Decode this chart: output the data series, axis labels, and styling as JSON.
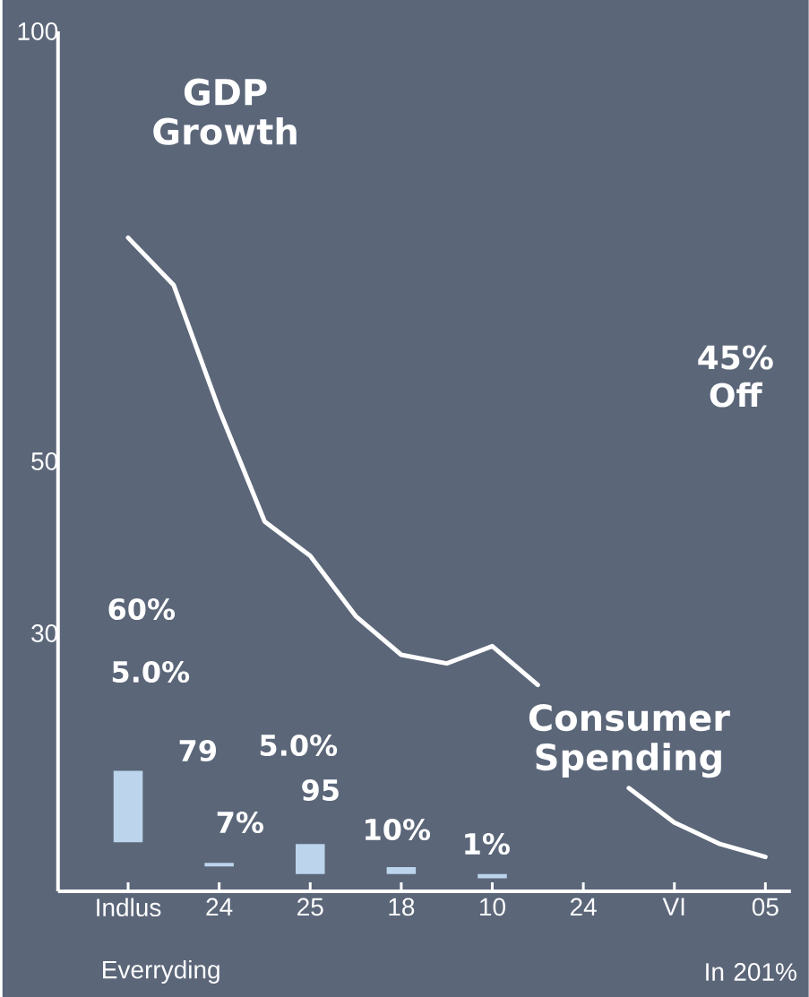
{
  "chart_data": {
    "type": "line",
    "categories": [
      "Indlus",
      null,
      "24",
      null,
      "25",
      null,
      "18",
      null,
      "10",
      null,
      "24",
      null,
      "VI",
      null,
      "05"
    ],
    "ylim": [
      0,
      100
    ],
    "yticks": [
      100,
      50,
      30
    ],
    "grid": false,
    "marker": "none",
    "line_style": "solid",
    "series": [
      {
        "name": "GDP Growth",
        "color": "#ffffff",
        "values": [
          76,
          70.5,
          56,
          43,
          39,
          32,
          27.5,
          26.5,
          28.5,
          24,
          null,
          null,
          null,
          null,
          null
        ]
      },
      {
        "name": "Consumer Spending",
        "color": "#ffffff",
        "values": [
          null,
          null,
          null,
          null,
          null,
          null,
          null,
          null,
          null,
          null,
          null,
          12,
          8,
          5.5,
          4
        ]
      },
      {
        "type": "bar",
        "color": "#bcd4ec",
        "base": [
          5.7,
          null,
          2.9,
          null,
          2,
          null,
          2,
          null,
          1.5,
          null,
          null,
          null,
          null,
          null,
          null
        ],
        "values": [
          8.3,
          null,
          0.4,
          null,
          3.5,
          null,
          0.8,
          null,
          0.5,
          null,
          null,
          null,
          null,
          null,
          null
        ]
      }
    ],
    "annotations": [
      "60%",
      "5.0%",
      "79",
      "7%",
      "5.0%",
      "95",
      "10%",
      "1%",
      "45% Off",
      "Everryding",
      "In 201%"
    ]
  }
}
